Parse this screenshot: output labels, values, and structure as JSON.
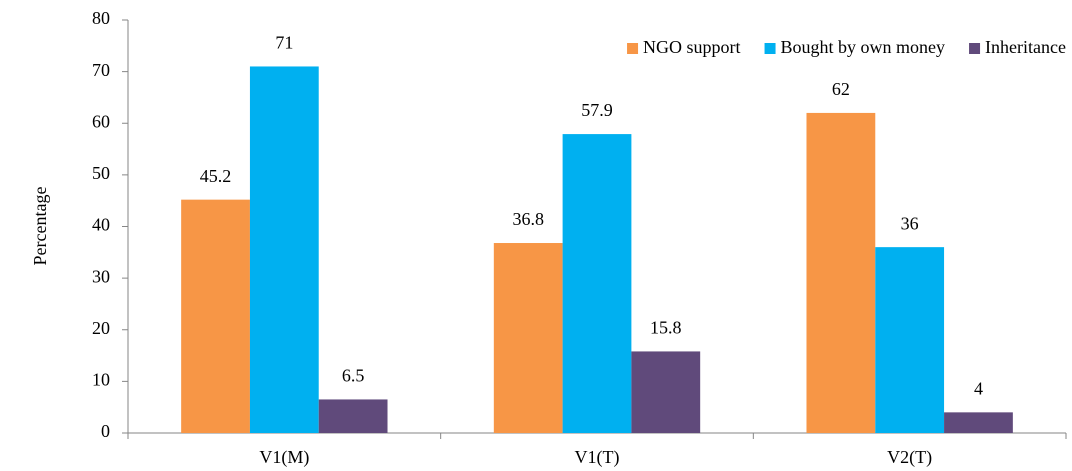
{
  "chart_data": {
    "type": "bar",
    "y_label": "Percentage",
    "categories": [
      "V1(M)",
      "V1(T)",
      "V2(T)"
    ],
    "series": [
      {
        "name": "NGO support",
        "color": "#f79646",
        "values": [
          45.2,
          36.8,
          62
        ]
      },
      {
        "name": "Bought by own money",
        "color": "#00b0f0",
        "values": [
          71,
          57.9,
          36
        ]
      },
      {
        "name": "Inheritance",
        "color": "#604a7b",
        "values": [
          6.5,
          15.8,
          4
        ]
      }
    ],
    "ylim": [
      0,
      80
    ],
    "yticks": [
      0,
      10,
      20,
      30,
      40,
      50,
      60,
      70,
      80
    ],
    "grid": false,
    "legend": "top-right"
  }
}
